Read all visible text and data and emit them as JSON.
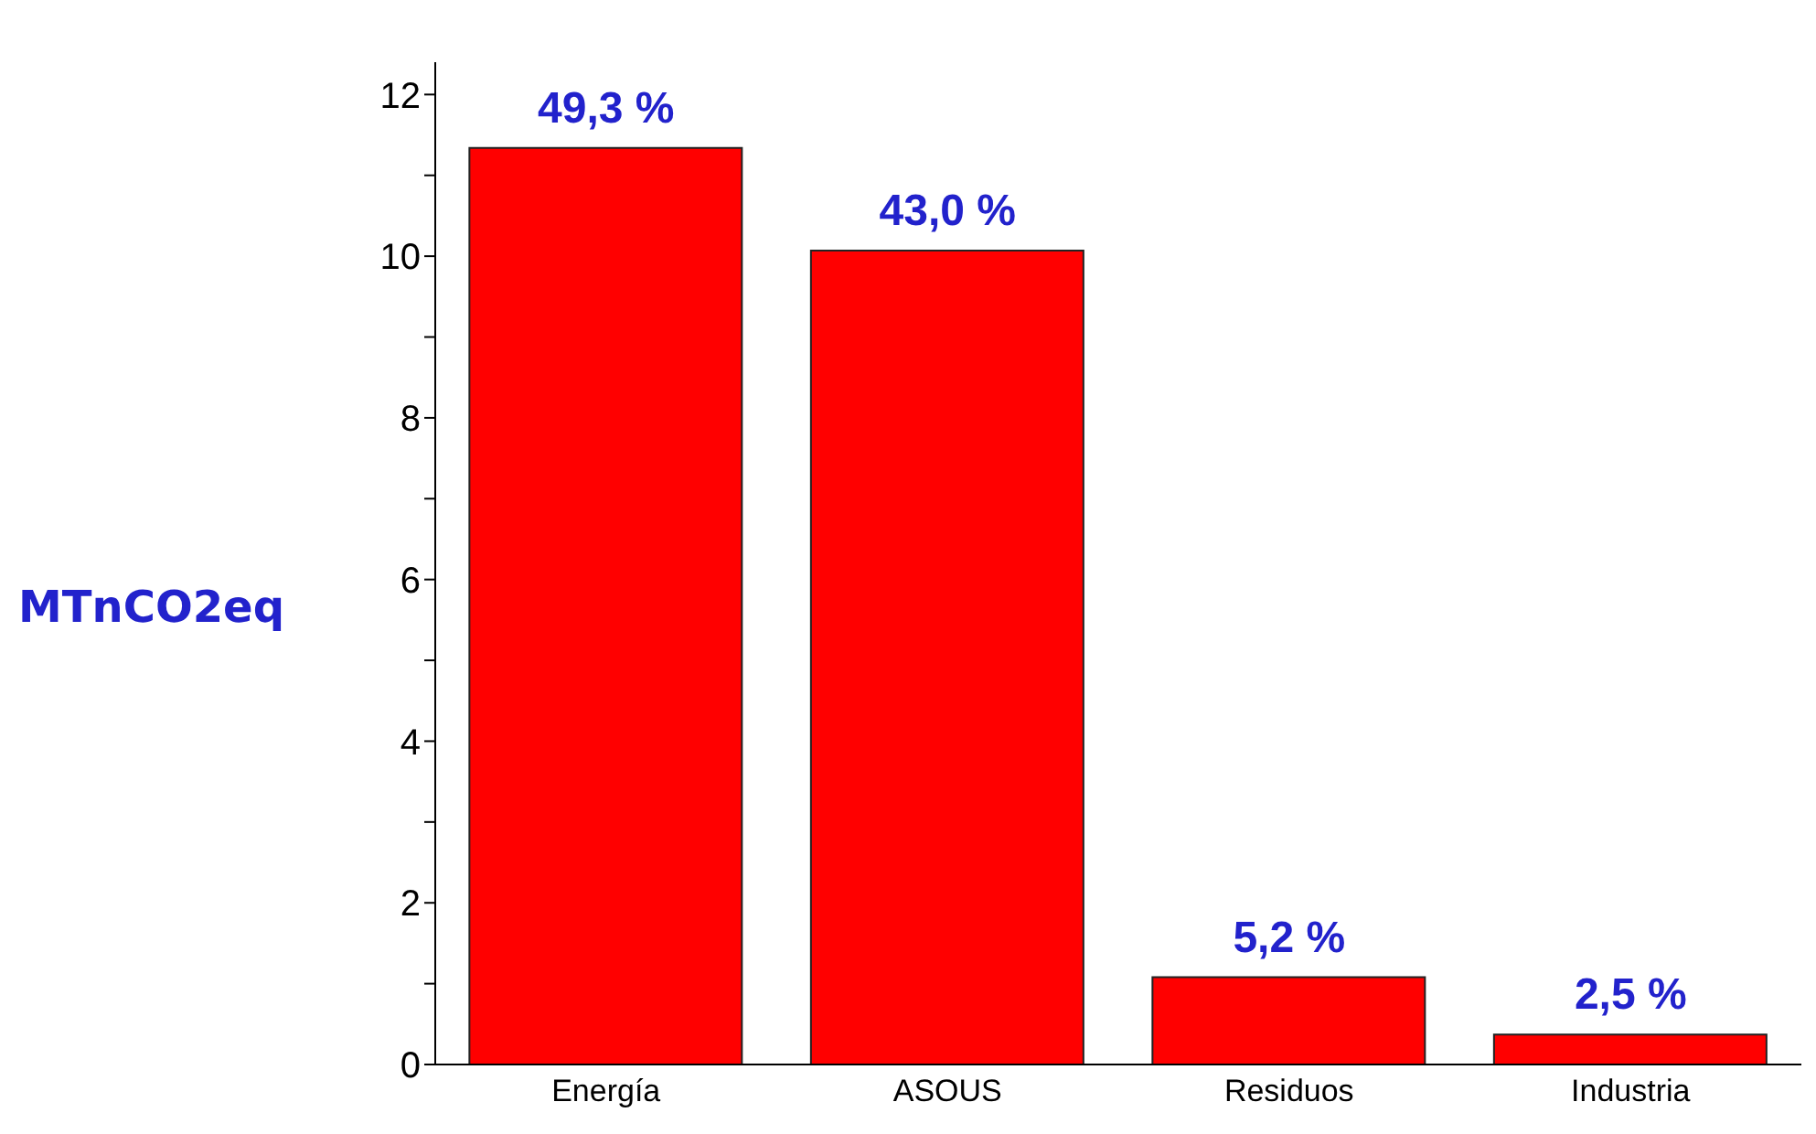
{
  "chart_data": {
    "type": "bar",
    "ylabel": "MTnCO2eq",
    "categories": [
      "Energía",
      "ASOUS",
      "Residuos",
      "Industria"
    ],
    "values": [
      11.34,
      10.07,
      1.08,
      0.37
    ],
    "color": "#ff0000",
    "annotations": [
      {
        "text": "49,3 %",
        "x": "Energía",
        "y": 11.34
      },
      {
        "text": "43,0 %",
        "x": "ASOUS",
        "y": 10.07
      },
      {
        "text": "5,2 %",
        "x": "Residuos",
        "y": 1.08
      },
      {
        "text": "2,5 %",
        "x": "Industria",
        "y": 0.37
      }
    ],
    "ylim": [
      0,
      12.4
    ],
    "yticks": [
      0,
      {
        "value": 1,
        "label": null
      },
      2,
      {
        "value": 3,
        "label": null
      },
      4,
      {
        "value": 5,
        "label": null
      },
      6,
      {
        "value": 7,
        "label": null
      },
      8,
      {
        "value": 9,
        "label": null
      },
      10,
      {
        "value": 11,
        "label": null
      },
      12
    ],
    "grid": false,
    "legend": false
  }
}
